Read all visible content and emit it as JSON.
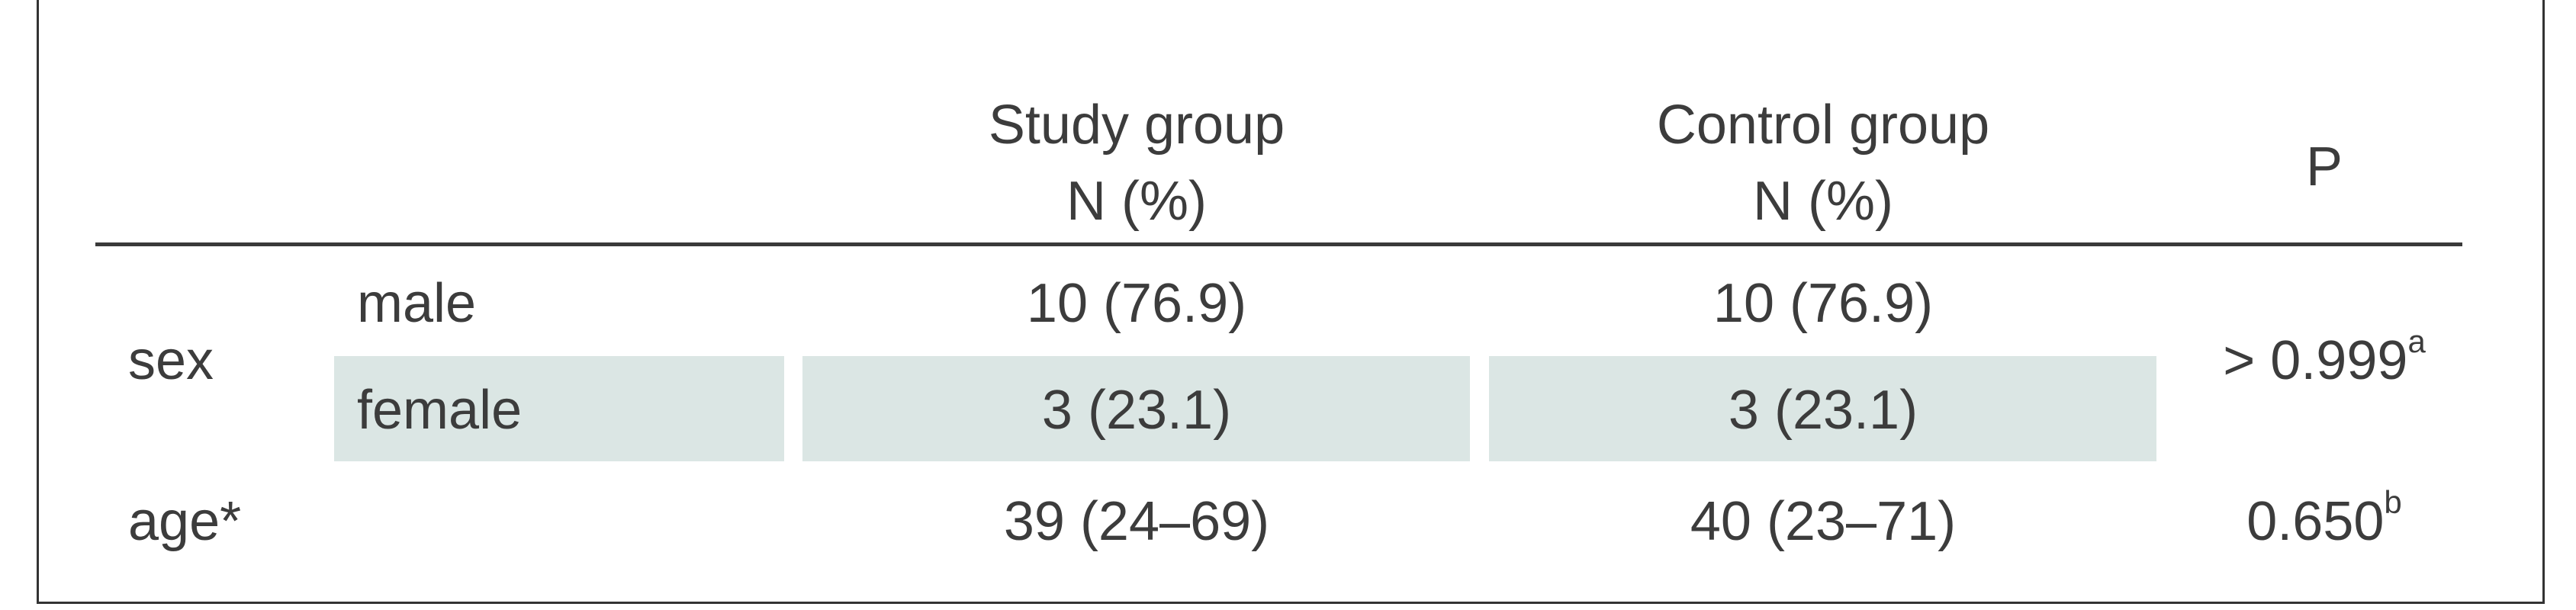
{
  "table": {
    "headers": {
      "study_group_line1": "Study group",
      "study_group_line2": "N (%)",
      "control_group_line1": "Control group",
      "control_group_line2": "N (%)",
      "p": "P"
    },
    "rows": [
      {
        "group": "sex",
        "sub": "male",
        "study": "10 (76.9)",
        "control": "10 (76.9)"
      },
      {
        "group": "",
        "sub": "female",
        "study": "3 (23.1)",
        "control": "3 (23.1)"
      },
      {
        "group": "age*",
        "sub": "",
        "study": "39 (24–69)",
        "control": "40 (23–71)"
      }
    ],
    "p_values": [
      {
        "value": "> 0.999",
        "note": "a"
      },
      {
        "value": "0.650",
        "note": "b"
      }
    ]
  },
  "colors": {
    "shading": "#dbe6e4",
    "rule": "#3a3a3a",
    "text": "#3c3c3c"
  }
}
